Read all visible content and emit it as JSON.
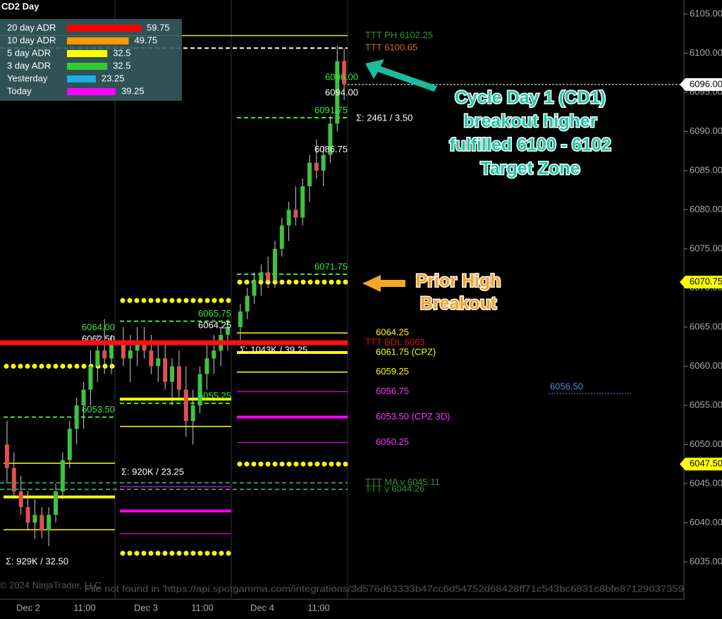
{
  "title": "CD2 Day",
  "adr_legend": [
    {
      "label": "20 day ADR",
      "value": 59.75,
      "color": "#ff0000"
    },
    {
      "label": "10 day ADR",
      "value": 49.75,
      "color": "#ff9900"
    },
    {
      "label": "5 day ADR",
      "value": 32.5,
      "color": "#ffff00"
    },
    {
      "label": "3 day ADR",
      "value": 32.5,
      "color": "#33cc33"
    },
    {
      "label": "Yesterday",
      "value": 23.25,
      "color": "#1ab0e0"
    },
    {
      "label": "Today",
      "value": 39.25,
      "color": "#ff00ff"
    }
  ],
  "chart_data": {
    "type": "candlestick",
    "ylim": [
      6030.4,
      6106.8
    ],
    "yticks": [
      {
        "value": 6035,
        "label": "6035.00"
      },
      {
        "value": 6040,
        "label": "6040.00"
      },
      {
        "value": 6045,
        "label": "6045.00"
      },
      {
        "value": 6050,
        "label": "6050.00"
      },
      {
        "value": 6055,
        "label": "6055.00"
      },
      {
        "value": 6060,
        "label": "6060.00"
      },
      {
        "value": 6065,
        "label": "6065.00"
      },
      {
        "value": 6070,
        "label": "6070.00"
      },
      {
        "value": 6075,
        "label": "6075.00"
      },
      {
        "value": 6080,
        "label": "6080.00"
      },
      {
        "value": 6085,
        "label": "6085.00"
      },
      {
        "value": 6090,
        "label": "6090.00"
      },
      {
        "value": 6095,
        "label": "6095.00"
      },
      {
        "value": 6100,
        "label": "6100.00"
      },
      {
        "value": 6105,
        "label": "6105.00"
      }
    ],
    "xticks": [
      "Dec 2",
      "11:00",
      "Dec 3",
      "11:00",
      "Dec 4",
      "11:00"
    ],
    "up_color": "#3fc33f",
    "down_color": "#e05050",
    "sessions": [
      {
        "candles": [
          [
            6050,
            6053,
            6045,
            6047
          ],
          [
            6047,
            6049,
            6043,
            6044
          ],
          [
            6044,
            6046,
            6041,
            6042
          ],
          [
            6042,
            6044,
            6039,
            6040
          ],
          [
            6040,
            6043,
            6038,
            6041
          ],
          [
            6041,
            6042,
            6038,
            6039
          ],
          [
            6039,
            6042,
            6037,
            6041
          ],
          [
            6041,
            6045,
            6040,
            6044
          ],
          [
            6044,
            6049,
            6043,
            6048
          ],
          [
            6048,
            6053,
            6047,
            6052
          ],
          [
            6052,
            6056,
            6050,
            6055
          ],
          [
            6055,
            6058,
            6052,
            6057
          ],
          [
            6057,
            6062,
            6055,
            6060
          ],
          [
            6060,
            6064,
            6058,
            6062
          ],
          [
            6062,
            6066,
            6059,
            6061
          ],
          [
            6061,
            6064,
            6059,
            6063
          ]
        ],
        "lines": [
          {
            "value": 6060,
            "color": "#ffff00",
            "style": "dotted"
          },
          {
            "value": 6047.6,
            "color": "#ffff00",
            "style": "thin"
          },
          {
            "value": 6043.3,
            "color": "#ffff00",
            "style": "thick"
          },
          {
            "value": 6039.1,
            "color": "#ffff00",
            "style": "thin"
          },
          {
            "value": 6053.5,
            "color": "#33ee33",
            "style": "dashed"
          }
        ],
        "labels": [
          {
            "value": 6064,
            "label": "6064.00",
            "color": "#33ee33"
          },
          {
            "value": 6062.5,
            "label": "6062.50",
            "color": "#ffffff"
          },
          {
            "value": 6053.5,
            "label": "6053.50",
            "color": "#33ee33"
          }
        ],
        "volume": "Σ: 929K / 32.50"
      },
      {
        "candles": [
          [
            6063,
            6065,
            6060,
            6061
          ],
          [
            6061,
            6064,
            6058,
            6062
          ],
          [
            6062,
            6065,
            6060,
            6063
          ],
          [
            6063,
            6065,
            6061,
            6062
          ],
          [
            6062,
            6064,
            6059,
            6060
          ],
          [
            6060,
            6063,
            6058,
            6061
          ],
          [
            6061,
            6063,
            6057,
            6058
          ],
          [
            6058,
            6061,
            6055,
            6060
          ],
          [
            6060,
            6062,
            6056,
            6057
          ],
          [
            6057,
            6060,
            6051,
            6053
          ],
          [
            6053,
            6057,
            6050,
            6055
          ],
          [
            6055,
            6060,
            6054,
            6059
          ],
          [
            6059,
            6063,
            6057,
            6061
          ],
          [
            6061,
            6064,
            6059,
            6062
          ],
          [
            6062,
            6065,
            6060,
            6064
          ],
          [
            6064,
            6066,
            6062,
            6065
          ]
        ],
        "lines": [
          {
            "value": 6068.4,
            "color": "#ffff00",
            "style": "dotted"
          },
          {
            "value": 6036.1,
            "color": "#ffff00",
            "style": "dotted"
          },
          {
            "value": 6055.8,
            "color": "#ffff00",
            "style": "thick"
          },
          {
            "value": 6052.3,
            "color": "#ffff00",
            "style": "thin"
          },
          {
            "value": 6044.6,
            "color": "#cc00cc",
            "style": "thin"
          },
          {
            "value": 6041.5,
            "color": "#ff00ff",
            "style": "thick"
          },
          {
            "value": 6038.6,
            "color": "#cc00cc",
            "style": "thin"
          },
          {
            "value": 6065.75,
            "color": "#33ee33",
            "style": "dashed"
          },
          {
            "value": 6055.25,
            "color": "#33ee33",
            "style": "dashed"
          }
        ],
        "labels": [
          {
            "value": 6065.75,
            "label": "6065.75",
            "color": "#33ee33"
          },
          {
            "value": 6064.25,
            "label": "6064.25",
            "color": "#ffffff"
          },
          {
            "value": 6055.25,
            "label": "6055.25",
            "color": "#33ee33"
          }
        ],
        "volume": "Σ: 920K / 23.25"
      },
      {
        "candles": [
          [
            6065,
            6068,
            6063,
            6067
          ],
          [
            6067,
            6070,
            6066,
            6069
          ],
          [
            6069,
            6072,
            6068,
            6071
          ],
          [
            6071,
            6073,
            6069,
            6072
          ],
          [
            6072,
            6074,
            6070,
            6071
          ],
          [
            6071,
            6076,
            6070,
            6075
          ],
          [
            6075,
            6079,
            6074,
            6078
          ],
          [
            6078,
            6081,
            6076,
            6080
          ],
          [
            6080,
            6083,
            6078,
            6079
          ],
          [
            6079,
            6084,
            6078,
            6083
          ],
          [
            6083,
            6087,
            6081,
            6086
          ],
          [
            6086,
            6089,
            6084,
            6085
          ],
          [
            6085,
            6088,
            6083,
            6087
          ],
          [
            6087,
            6092,
            6086,
            6091
          ],
          [
            6091,
            6101,
            6090,
            6099
          ],
          [
            6099,
            6100.65,
            6094,
            6096
          ]
        ],
        "lines": [
          {
            "value": 6070.75,
            "color": "#ffff00",
            "style": "dotted"
          },
          {
            "value": 6047.5,
            "color": "#ffff00",
            "style": "dotted"
          },
          {
            "value": 6064.25,
            "color": "#ffff00",
            "style": "thin",
            "label": "6064.25"
          },
          {
            "value": 6061.75,
            "color": "#ffff00",
            "style": "thick",
            "label": "6061.75 (CPZ)"
          },
          {
            "value": 6059.25,
            "color": "#ffff00",
            "style": "thin",
            "label": "6059.25"
          },
          {
            "value": 6056.75,
            "color": "#cc00cc",
            "style": "thin",
            "label": "6056.75",
            "label_color": "#ff33ff"
          },
          {
            "value": 6053.5,
            "color": "#ff00ff",
            "style": "thick",
            "label": "6053.50 (CPZ 3D)",
            "label_color": "#ff33ff"
          },
          {
            "value": 6050.25,
            "color": "#cc00cc",
            "style": "thin",
            "label": "6050.25",
            "label_color": "#ff33ff"
          },
          {
            "value": 6071.75,
            "color": "#33ee33",
            "style": "dashed"
          },
          {
            "value": 6091.75,
            "color": "#33ee33",
            "style": "dashed"
          }
        ],
        "labels": [
          {
            "value": 6096,
            "label": "6096.00",
            "color": "#33ee33"
          },
          {
            "value": 6094,
            "label": "6094.00",
            "color": "#ffffff"
          },
          {
            "value": 6091.75,
            "label": "6091.75",
            "color": "#33ee33"
          },
          {
            "value": 6086.75,
            "label": "6086.75",
            "color": "#ffffff"
          },
          {
            "value": 6071.75,
            "label": "6071.75",
            "color": "#33ee33"
          }
        ],
        "volume": "Σ: 1043K / 39.25",
        "last_bar_volume": "Σ: 2461 / 3.50"
      }
    ],
    "levels": [
      {
        "label": "TTT PH 6102.25",
        "value": 6102.25,
        "color": "#e8e830",
        "label_color": "#2a9a2a",
        "style": "thin"
      },
      {
        "label": "TTT 6100.65",
        "value": 6100.65,
        "color": "#ffffff",
        "label_color": "#d2691e",
        "style": "dashed"
      },
      {
        "label": "TTT BDL 6063",
        "value": 6063,
        "color": "#ff1010",
        "label_color": "#dd1111",
        "style": "heavy"
      },
      {
        "label": "TTT MA v 6045.11",
        "value": 6045.11,
        "color": "#2a9a6a",
        "label_color": "#2a9a2a",
        "style": "dashed"
      },
      {
        "label": "TTT v 6044.26",
        "value": 6044.26,
        "color": "#2a9a6a",
        "label_color": "#2a9a2a",
        "style": "dashed"
      }
    ],
    "price_markers": [
      {
        "value": 6096,
        "label": "6096.00",
        "color": "#ffffff"
      },
      {
        "value": 6070.75,
        "label": "6070.75",
        "color": "#ffff00"
      },
      {
        "value": 6047.5,
        "label": "6047.50",
        "color": "#ffff00"
      }
    ],
    "profile_marker": {
      "value": 6056.5,
      "label": "6056.50",
      "color": "#5588dd"
    },
    "annotations": [
      {
        "lines": [
          "Cycle Day 1 (CD1)",
          "breakout higher",
          "fulfilled 6100 - 6102",
          "Target Zone"
        ],
        "color": "#22c8a8"
      },
      {
        "lines": [
          "Prior High",
          "Breakout"
        ],
        "color": "#ff9f1a"
      }
    ]
  },
  "footer": {
    "copyright": "© 2024 NinjaTrader, LLC",
    "error": "File not found in 'https://api.spotgamma.com/integrations/3d576d63333b47cc6d54752d68428ff71c543bc6831c8bfe87129037359"
  }
}
